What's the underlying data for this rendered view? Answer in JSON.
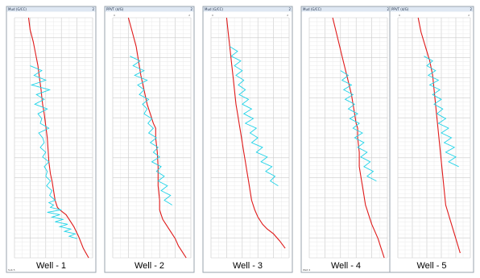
{
  "chart_data": [
    {
      "type": "line",
      "title": "Well - 1",
      "header_left": "Mud (G/CC)",
      "header_right": "2",
      "footer_left": "Sub 5",
      "corner_marks": [],
      "colors": {
        "measured": "#1fd3e8",
        "model": "#e01a1a"
      },
      "grid": true,
      "ylim": [
        0,
        100
      ],
      "xlim": [
        0,
        100
      ],
      "series": [
        {
          "role": "model",
          "x": [
            18,
            20,
            24,
            27,
            30,
            32,
            34,
            35,
            36,
            38,
            40,
            42,
            43,
            44,
            46,
            48,
            50,
            52,
            55,
            58,
            62,
            66,
            70,
            76,
            82,
            88,
            95
          ],
          "y": [
            0,
            5,
            10,
            15,
            20,
            25,
            30,
            33,
            36,
            40,
            45,
            50,
            55,
            60,
            65,
            68,
            72,
            76,
            79,
            80,
            81,
            82,
            84,
            87,
            91,
            96,
            100
          ]
        },
        {
          "role": "measured",
          "x": [
            20,
            35,
            25,
            40,
            22,
            45,
            28,
            38,
            26,
            42,
            30,
            35,
            33,
            44,
            31,
            36,
            38,
            33,
            40,
            36,
            44,
            38,
            42,
            40,
            46,
            41,
            48,
            45,
            52,
            44,
            50,
            46,
            60,
            42,
            58,
            48,
            62,
            52,
            68,
            58,
            72,
            64,
            78,
            70,
            80
          ],
          "y": [
            20,
            22,
            24,
            26,
            28,
            30,
            32,
            34,
            36,
            38,
            40,
            42,
            44,
            46,
            48,
            50,
            52,
            54,
            56,
            58,
            60,
            62,
            64,
            66,
            68,
            70,
            72,
            74,
            76,
            77,
            78,
            79,
            80,
            81,
            82,
            83,
            84,
            85,
            86,
            87,
            88,
            89,
            90,
            91,
            92
          ]
        }
      ]
    },
    {
      "type": "line",
      "title": "Well - 2",
      "header_left": "PPVT (d/G)",
      "header_right": "2",
      "footer_left": "",
      "corner_marks": [
        "0",
        "2"
      ],
      "colors": {
        "measured": "#1fd3e8",
        "model": "#e01a1a"
      },
      "grid": true,
      "ylim": [
        0,
        100
      ],
      "xlim": [
        0,
        100
      ],
      "series": [
        {
          "role": "model",
          "x": [
            20,
            25,
            30,
            33,
            36,
            40,
            44,
            48,
            52,
            55,
            55,
            57,
            58,
            58,
            60,
            60,
            62,
            64,
            68,
            72,
            76,
            80,
            84,
            88,
            94
          ],
          "y": [
            0,
            6,
            12,
            18,
            24,
            30,
            36,
            40,
            44,
            46,
            50,
            56,
            62,
            70,
            76,
            80,
            82,
            84,
            86,
            88,
            90,
            92,
            95,
            97,
            100
          ]
        },
        {
          "role": "measured",
          "x": [
            22,
            35,
            26,
            40,
            28,
            44,
            32,
            40,
            34,
            46,
            38,
            44,
            40,
            50,
            45,
            52,
            46,
            56,
            48,
            58,
            52,
            60,
            50,
            62,
            56,
            66,
            58,
            70,
            62,
            74,
            66,
            76
          ],
          "y": [
            16,
            18,
            20,
            22,
            24,
            26,
            28,
            30,
            32,
            34,
            36,
            38,
            40,
            42,
            44,
            46,
            48,
            50,
            52,
            54,
            56,
            58,
            60,
            62,
            64,
            66,
            68,
            70,
            72,
            74,
            76,
            78
          ]
        }
      ]
    },
    {
      "type": "line",
      "title": "Well - 3",
      "header_left": "Mud (G/CC)",
      "header_right": "2",
      "footer_left": "",
      "corner_marks": [
        "0",
        "2"
      ],
      "colors": {
        "measured": "#1fd3e8",
        "model": "#e01a1a"
      },
      "grid": true,
      "ylim": [
        0,
        100
      ],
      "xlim": [
        0,
        100
      ],
      "series": [
        {
          "role": "model",
          "x": [
            20,
            22,
            24,
            26,
            28,
            30,
            32,
            34,
            36,
            38,
            40,
            42,
            44,
            46,
            48,
            50,
            52,
            56,
            60,
            66,
            72,
            80,
            88,
            95
          ],
          "y": [
            0,
            6,
            12,
            18,
            24,
            30,
            36,
            40,
            44,
            48,
            52,
            56,
            60,
            64,
            68,
            72,
            76,
            80,
            83,
            86,
            88,
            90,
            93,
            96
          ]
        },
        {
          "role": "measured",
          "x": [
            24,
            34,
            26,
            38,
            30,
            40,
            32,
            42,
            35,
            44,
            36,
            48,
            40,
            52,
            42,
            54,
            44,
            58,
            50,
            60,
            52,
            66,
            58,
            72,
            64,
            78,
            70,
            82,
            76,
            86
          ],
          "y": [
            12,
            14,
            16,
            18,
            20,
            22,
            24,
            26,
            28,
            30,
            32,
            34,
            36,
            38,
            40,
            42,
            44,
            46,
            48,
            50,
            52,
            54,
            56,
            58,
            60,
            62,
            64,
            66,
            68,
            70
          ]
        }
      ]
    },
    {
      "type": "line",
      "title": "Well - 4",
      "header_left": "Mud (G/CC)",
      "header_right": "2",
      "footer_left": "Well 4",
      "corner_marks": [],
      "colors": {
        "measured": "#1fd3e8",
        "model": "#e01a1a"
      },
      "grid": true,
      "ylim": [
        0,
        100
      ],
      "xlim": [
        0,
        100
      ],
      "series": [
        {
          "role": "model",
          "x": [
            30,
            36,
            42,
            48,
            54,
            58,
            60,
            62,
            62,
            64,
            64,
            66,
            68,
            70,
            72,
            74,
            76,
            80,
            84,
            88,
            92,
            96
          ],
          "y": [
            0,
            8,
            16,
            24,
            32,
            40,
            44,
            46,
            50,
            56,
            62,
            66,
            70,
            74,
            78,
            80,
            82,
            86,
            89,
            92,
            96,
            100
          ]
        },
        {
          "role": "measured",
          "x": [
            40,
            50,
            42,
            54,
            44,
            56,
            46,
            58,
            50,
            62,
            52,
            64,
            56,
            68,
            58,
            70,
            62,
            74,
            66,
            78,
            70,
            82,
            74,
            86
          ],
          "y": [
            22,
            24,
            26,
            28,
            30,
            32,
            34,
            36,
            38,
            40,
            42,
            44,
            46,
            48,
            50,
            52,
            54,
            56,
            58,
            60,
            62,
            64,
            66,
            68
          ]
        }
      ]
    },
    {
      "type": "line",
      "title": "Well - 5",
      "header_left": "PPVT (d/G)",
      "header_right": "2",
      "footer_left": "",
      "corner_marks": [
        "0",
        "2"
      ],
      "colors": {
        "measured": "#1fd3e8",
        "model": "#e01a1a"
      },
      "grid": true,
      "ylim": [
        0,
        100
      ],
      "xlim": [
        0,
        100
      ],
      "series": [
        {
          "role": "model",
          "x": [
            28,
            32,
            38,
            44,
            48,
            50,
            52,
            54,
            56,
            58,
            60,
            62,
            64,
            66,
            70,
            74,
            78,
            82,
            86
          ],
          "y": [
            0,
            6,
            12,
            18,
            24,
            30,
            36,
            42,
            48,
            54,
            60,
            66,
            72,
            78,
            82,
            86,
            90,
            94,
            98
          ]
        },
        {
          "role": "measured",
          "x": [
            36,
            48,
            40,
            52,
            42,
            56,
            44,
            58,
            48,
            60,
            50,
            62,
            54,
            66,
            56,
            70,
            60,
            74,
            64,
            78,
            66,
            80,
            70,
            84
          ],
          "y": [
            16,
            18,
            20,
            22,
            24,
            26,
            28,
            30,
            32,
            34,
            36,
            38,
            40,
            42,
            44,
            46,
            48,
            50,
            52,
            54,
            56,
            58,
            60,
            62
          ]
        }
      ]
    }
  ]
}
